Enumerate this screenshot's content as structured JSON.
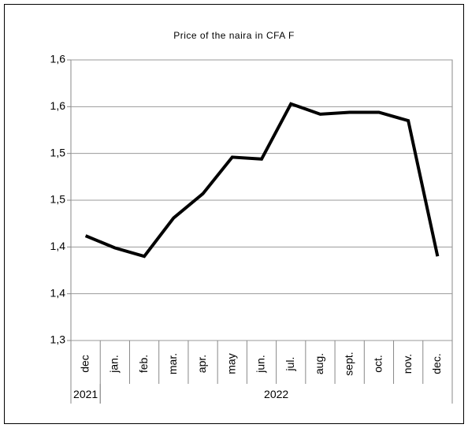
{
  "chart_data": {
    "type": "line",
    "title": "Price of the naira in CFA F",
    "categories": [
      "dec",
      "jan.",
      "feb.",
      "mar.",
      "apr.",
      "may",
      "jun.",
      "jul.",
      "aug.",
      "sept.",
      "oct.",
      "nov.",
      "dec."
    ],
    "year_groups": [
      {
        "label": "2021",
        "span": 1
      },
      {
        "label": "2022",
        "span": 12
      }
    ],
    "series": [
      {
        "name": "Price of the naira in CFA F",
        "color": "#000000",
        "values": [
          1.412,
          1.399,
          1.39,
          1.431,
          1.457,
          1.496,
          1.494,
          1.553,
          1.542,
          1.544,
          1.544,
          1.535,
          1.39
        ]
      }
    ],
    "ylim": [
      1.3,
      1.6
    ],
    "yticks": [
      {
        "value": 1.3,
        "label": "1,3"
      },
      {
        "value": 1.35,
        "label": "1,4"
      },
      {
        "value": 1.4,
        "label": "1,4"
      },
      {
        "value": 1.45,
        "label": "1,5"
      },
      {
        "value": 1.5,
        "label": "1,5"
      },
      {
        "value": 1.55,
        "label": "1,6"
      },
      {
        "value": 1.6,
        "label": "1,6"
      }
    ],
    "grid": true
  }
}
